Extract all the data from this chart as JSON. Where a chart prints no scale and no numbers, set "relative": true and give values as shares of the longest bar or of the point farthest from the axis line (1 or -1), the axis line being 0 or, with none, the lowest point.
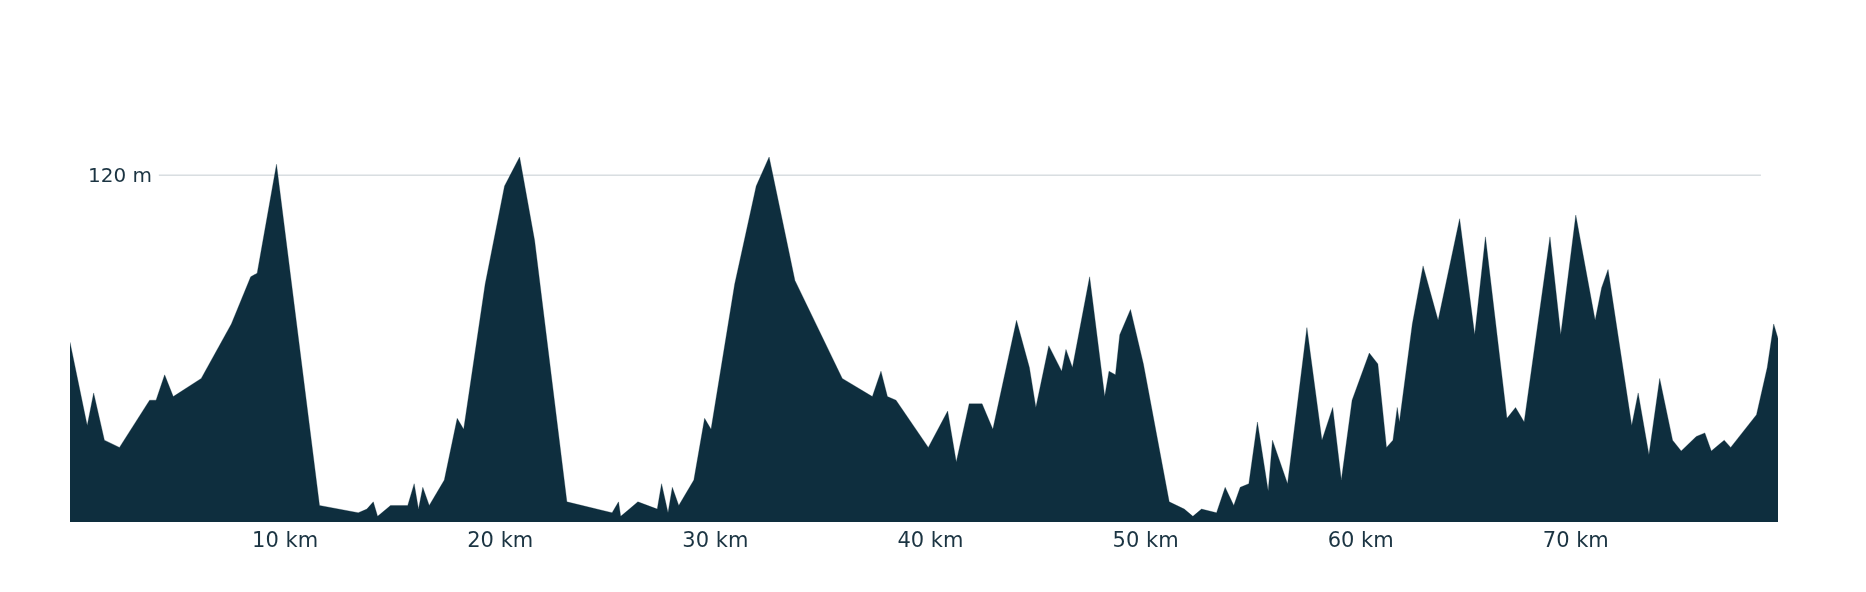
{
  "chart_data": {
    "type": "area",
    "relative": true,
    "color": "#0e2e3e",
    "x": [
      0,
      0.8,
      1.1,
      1.6,
      2.3,
      3.7,
      4.0,
      4.4,
      4.8,
      6.1,
      7.5,
      8.4,
      8.7,
      9.6,
      11.6,
      13.4,
      13.8,
      14.1,
      14.3,
      14.9,
      15.7,
      16.0,
      16.2,
      16.4,
      16.7,
      17.4,
      18.0,
      18.3,
      19.3,
      20.2,
      20.9,
      21.6,
      23.1,
      25.2,
      25.5,
      25.6,
      26.4,
      27.3,
      27.5,
      27.8,
      28.0,
      28.3,
      29.0,
      29.5,
      29.8,
      30.9,
      31.9,
      32.5,
      33.7,
      35.9,
      37.3,
      37.7,
      38.0,
      38.4,
      39.9,
      40.8,
      41.2,
      41.8,
      42.4,
      42.9,
      44.0,
      44.6,
      44.9,
      45.5,
      46.1,
      46.3,
      46.6,
      47.4,
      48.1,
      48.3,
      48.6,
      48.8,
      49.3,
      49.9,
      51.1,
      51.8,
      52.2,
      52.6,
      53.3,
      53.7,
      54.1,
      54.4,
      54.8,
      55.2,
      55.7,
      55.9,
      56.6,
      57.5,
      58.2,
      58.7,
      59.1,
      59.6,
      60.4,
      60.8,
      61.2,
      61.5,
      61.7,
      61.8,
      62.4,
      62.9,
      63.6,
      64.6,
      65.3,
      65.8,
      66.8,
      67.2,
      67.6,
      68.8,
      69.3,
      70.0,
      70.9,
      71.2,
      71.5,
      72.6,
      72.9,
      73.4,
      73.9,
      74.5,
      74.9,
      75.6,
      76.0,
      76.3,
      76.7,
      76.9,
      77.2,
      78.4,
      78.9,
      79.2,
      79.4
    ],
    "values": [
      0.49,
      0.26,
      0.35,
      0.22,
      0.2,
      0.33,
      0.33,
      0.4,
      0.34,
      0.39,
      0.54,
      0.67,
      0.68,
      0.98,
      0.04,
      0.02,
      0.03,
      0.05,
      0.01,
      0.04,
      0.04,
      0.1,
      0.03,
      0.09,
      0.04,
      0.11,
      0.28,
      0.25,
      0.65,
      0.92,
      1.0,
      0.77,
      0.05,
      0.02,
      0.05,
      0.01,
      0.05,
      0.03,
      0.1,
      0.02,
      0.09,
      0.04,
      0.11,
      0.28,
      0.25,
      0.65,
      0.92,
      1.0,
      0.66,
      0.39,
      0.34,
      0.41,
      0.34,
      0.33,
      0.2,
      0.3,
      0.16,
      0.32,
      0.32,
      0.25,
      0.55,
      0.42,
      0.31,
      0.48,
      0.41,
      0.47,
      0.42,
      0.67,
      0.34,
      0.41,
      0.4,
      0.51,
      0.58,
      0.43,
      0.05,
      0.03,
      0.01,
      0.03,
      0.02,
      0.09,
      0.04,
      0.09,
      0.1,
      0.27,
      0.08,
      0.22,
      0.1,
      0.53,
      0.22,
      0.31,
      0.11,
      0.33,
      0.46,
      0.43,
      0.2,
      0.22,
      0.31,
      0.27,
      0.54,
      0.7,
      0.55,
      0.83,
      0.51,
      0.78,
      0.28,
      0.31,
      0.27,
      0.78,
      0.51,
      0.84,
      0.55,
      0.64,
      0.69,
      0.26,
      0.35,
      0.18,
      0.39,
      0.22,
      0.19,
      0.23,
      0.24,
      0.19,
      0.21,
      0.22,
      0.2,
      0.29,
      0.42,
      0.54,
      0.5
    ],
    "xlim": [
      0,
      79.4
    ],
    "xticks": [
      {
        "value": 10,
        "label": "10 km"
      },
      {
        "value": 20,
        "label": "20 km"
      },
      {
        "value": 30,
        "label": "30 km"
      },
      {
        "value": 40,
        "label": "40 km"
      },
      {
        "value": 50,
        "label": "50 km"
      },
      {
        "value": 60,
        "label": "60 km"
      },
      {
        "value": 70,
        "label": "70 km"
      }
    ],
    "ref_lines": [
      {
        "axis": "y",
        "value": 0.95,
        "label": "120 m",
        "color": "#c5ccd1"
      }
    ]
  }
}
